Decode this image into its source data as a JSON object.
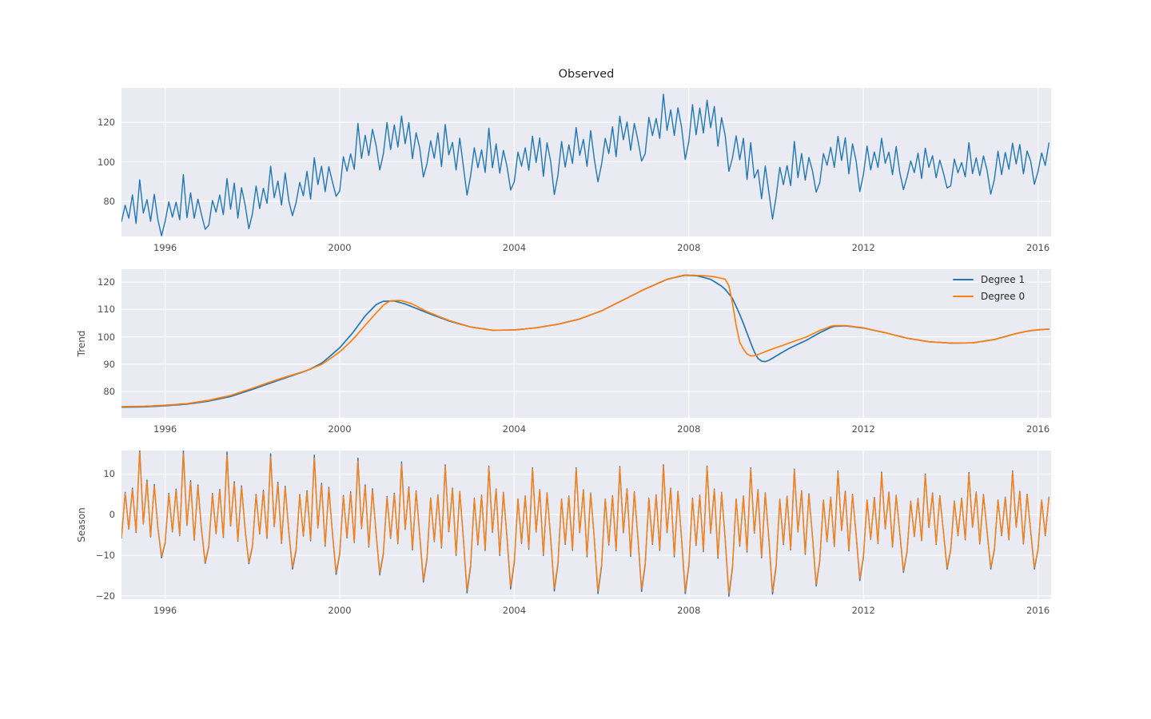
{
  "figure": {
    "title": "Observed",
    "background_color": "#ffffff",
    "axes_background_color": "#eaeaf2",
    "grid_color": "#ffffff",
    "tick_color": "#4d4d4d",
    "series_colors": {
      "degree1_blue": "#1f77b4",
      "degree0_orange": "#ff7f0e"
    }
  },
  "chart_data": [
    {
      "type": "line",
      "title": "Observed",
      "ylabel": "",
      "xlim": [
        1995.0,
        2016.3
      ],
      "ylim": [
        62.2,
        137.4
      ],
      "xticks": [
        1996,
        2000,
        2004,
        2008,
        2012,
        2016
      ],
      "xtick_labels": [
        "1996",
        "2000",
        "2004",
        "2008",
        "2012",
        "2016"
      ],
      "yticks": [
        80,
        100,
        120
      ],
      "ytick_labels": [
        "80",
        "100",
        "120"
      ],
      "grid": true,
      "legend": null,
      "series": [
        {
          "name": "Observed",
          "color": "#1f77b4",
          "source": "observed",
          "width": 1.4
        }
      ]
    },
    {
      "type": "line",
      "title": "",
      "ylabel": "Trend",
      "xlim": [
        1995.0,
        2016.3
      ],
      "ylim": [
        70.4,
        124.7
      ],
      "xticks": [
        1996,
        2000,
        2004,
        2008,
        2012,
        2016
      ],
      "xtick_labels": [
        "1996",
        "2000",
        "2004",
        "2008",
        "2012",
        "2016"
      ],
      "yticks": [
        80,
        90,
        100,
        110,
        120
      ],
      "ytick_labels": [
        "80",
        "90",
        "100",
        "110",
        "120"
      ],
      "grid": true,
      "legend": {
        "position": "upper right",
        "frame": false
      },
      "series": [
        {
          "name": "Degree 1",
          "color": "#1f77b4",
          "source": "trend1",
          "width": 1.7
        },
        {
          "name": "Degree 0",
          "color": "#ff7f0e",
          "source": "trend0",
          "width": 1.7
        }
      ]
    },
    {
      "type": "line",
      "title": "",
      "ylabel": "Season",
      "xlim": [
        1995.0,
        2016.3
      ],
      "ylim": [
        -20.8,
        15.8
      ],
      "xticks": [
        1996,
        2000,
        2004,
        2008,
        2012,
        2016
      ],
      "xtick_labels": [
        "1996",
        "2000",
        "2004",
        "2008",
        "2012",
        "2016"
      ],
      "yticks": [
        -20,
        -10,
        0,
        10
      ],
      "ytick_labels": [
        "−20",
        "−10",
        "0",
        "10"
      ],
      "grid": true,
      "legend": null,
      "series": [
        {
          "name": "Degree 1",
          "color": "#1f77b4",
          "source": "season1",
          "width": 1.4
        },
        {
          "name": "Degree 0",
          "color": "#ff7f0e",
          "source": "season0",
          "width": 1.4
        }
      ]
    }
  ],
  "model": {
    "months": {
      "start_year": 1995.0,
      "step_years": 0.0833333,
      "count": 256
    },
    "trend1_anchors": [
      [
        1995.0,
        74.3
      ],
      [
        1995.5,
        74.4
      ],
      [
        1996.0,
        74.8
      ],
      [
        1996.5,
        75.4
      ],
      [
        1997.0,
        76.5
      ],
      [
        1997.5,
        78.2
      ],
      [
        1998.0,
        80.8
      ],
      [
        1998.5,
        83.6
      ],
      [
        1999.0,
        86.3
      ],
      [
        1999.3,
        88.0
      ],
      [
        1999.6,
        90.5
      ],
      [
        2000.0,
        96.0
      ],
      [
        2000.3,
        101.5
      ],
      [
        2000.6,
        108.0
      ],
      [
        2000.85,
        112.0
      ],
      [
        2001.0,
        113.0
      ],
      [
        2001.25,
        113.1
      ],
      [
        2001.5,
        112.0
      ],
      [
        2002.0,
        108.8
      ],
      [
        2002.5,
        105.8
      ],
      [
        2003.0,
        103.6
      ],
      [
        2003.5,
        102.4
      ],
      [
        2004.0,
        102.5
      ],
      [
        2004.5,
        103.3
      ],
      [
        2005.0,
        104.6
      ],
      [
        2005.5,
        106.5
      ],
      [
        2006.0,
        109.5
      ],
      [
        2006.5,
        113.5
      ],
      [
        2007.0,
        117.5
      ],
      [
        2007.5,
        121.0
      ],
      [
        2007.9,
        122.5
      ],
      [
        2008.2,
        122.3
      ],
      [
        2008.5,
        121.0
      ],
      [
        2008.8,
        118.0
      ],
      [
        2009.0,
        114.0
      ],
      [
        2009.2,
        107.0
      ],
      [
        2009.4,
        98.5
      ],
      [
        2009.55,
        92.5
      ],
      [
        2009.7,
        90.7
      ],
      [
        2009.85,
        91.5
      ],
      [
        2010.0,
        93.0
      ],
      [
        2010.3,
        95.8
      ],
      [
        2010.7,
        98.8
      ],
      [
        2011.0,
        101.5
      ],
      [
        2011.3,
        103.8
      ],
      [
        2011.6,
        104.0
      ],
      [
        2012.0,
        103.2
      ],
      [
        2012.5,
        101.5
      ],
      [
        2013.0,
        99.5
      ],
      [
        2013.5,
        98.2
      ],
      [
        2014.0,
        97.7
      ],
      [
        2014.5,
        97.8
      ],
      [
        2015.0,
        99.0
      ],
      [
        2015.5,
        101.2
      ],
      [
        2015.8,
        102.2
      ],
      [
        2016.1,
        102.7
      ],
      [
        2016.3,
        102.8
      ]
    ],
    "trend0_anchors": [
      [
        1995.0,
        74.5
      ],
      [
        1995.5,
        74.6
      ],
      [
        1996.0,
        75.0
      ],
      [
        1996.5,
        75.6
      ],
      [
        1997.0,
        76.8
      ],
      [
        1997.5,
        78.6
      ],
      [
        1998.0,
        81.2
      ],
      [
        1998.5,
        84.0
      ],
      [
        1999.0,
        86.5
      ],
      [
        1999.3,
        88.0
      ],
      [
        1999.6,
        90.0
      ],
      [
        2000.0,
        94.5
      ],
      [
        2000.3,
        99.0
      ],
      [
        2000.6,
        104.5
      ],
      [
        2000.85,
        109.0
      ],
      [
        2001.0,
        111.5
      ],
      [
        2001.15,
        113.2
      ],
      [
        2001.4,
        113.3
      ],
      [
        2001.65,
        112.1
      ],
      [
        2002.0,
        109.2
      ],
      [
        2002.5,
        106.0
      ],
      [
        2003.0,
        103.6
      ],
      [
        2003.5,
        102.4
      ],
      [
        2004.0,
        102.5
      ],
      [
        2004.5,
        103.3
      ],
      [
        2005.0,
        104.6
      ],
      [
        2005.5,
        106.5
      ],
      [
        2006.0,
        109.5
      ],
      [
        2006.5,
        113.5
      ],
      [
        2007.0,
        117.5
      ],
      [
        2007.5,
        121.0
      ],
      [
        2007.9,
        122.6
      ],
      [
        2008.3,
        122.4
      ],
      [
        2008.6,
        121.9
      ],
      [
        2008.85,
        121.0
      ],
      [
        2008.95,
        117.5
      ],
      [
        2009.05,
        107.0
      ],
      [
        2009.15,
        98.5
      ],
      [
        2009.3,
        94.0
      ],
      [
        2009.45,
        92.8
      ],
      [
        2009.6,
        93.6
      ],
      [
        2009.85,
        95.2
      ],
      [
        2010.1,
        96.6
      ],
      [
        2010.4,
        98.3
      ],
      [
        2010.7,
        100.0
      ],
      [
        2011.0,
        102.3
      ],
      [
        2011.3,
        104.1
      ],
      [
        2011.6,
        104.1
      ],
      [
        2012.0,
        103.3
      ],
      [
        2012.5,
        101.5
      ],
      [
        2013.0,
        99.5
      ],
      [
        2013.5,
        98.2
      ],
      [
        2014.0,
        97.7
      ],
      [
        2014.5,
        97.8
      ],
      [
        2015.0,
        99.0
      ],
      [
        2015.5,
        101.2
      ],
      [
        2015.8,
        102.2
      ],
      [
        2016.1,
        102.7
      ],
      [
        2016.3,
        102.8
      ]
    ],
    "season": {
      "base12": [
        -8.5,
        5.0,
        -5.0,
        6.0,
        -6.0,
        15.0,
        -3.0,
        8.0,
        -7.0,
        7.0,
        -4.0,
        -13.0
      ],
      "scale_years_start": 1995,
      "deg1_pos": [
        1.1,
        1.05,
        1.05,
        1.0,
        1.0,
        0.95,
        0.9,
        0.82,
        0.82,
        0.77,
        0.77,
        0.77,
        0.82,
        0.82,
        0.77,
        0.77,
        0.72,
        0.72,
        0.67,
        0.67,
        0.72,
        0.72
      ],
      "deg1_neg": [
        0.68,
        0.83,
        0.93,
        0.93,
        1.04,
        1.14,
        1.14,
        1.29,
        1.5,
        1.4,
        1.45,
        1.5,
        1.45,
        1.5,
        1.55,
        1.5,
        1.34,
        1.24,
        1.08,
        1.03,
        1.03,
        1.03
      ],
      "deg0_pos": [
        1.05,
        1.0,
        1.0,
        0.95,
        0.95,
        0.9,
        0.85,
        0.8,
        0.8,
        0.75,
        0.75,
        0.75,
        0.8,
        0.8,
        0.75,
        0.75,
        0.7,
        0.7,
        0.65,
        0.65,
        0.7,
        0.7
      ],
      "deg0_neg": [
        0.65,
        0.8,
        0.9,
        0.9,
        1.0,
        1.1,
        1.1,
        1.25,
        1.45,
        1.35,
        1.4,
        1.45,
        1.4,
        1.45,
        1.5,
        1.45,
        1.3,
        1.2,
        1.05,
        1.0,
        1.0,
        1.0
      ]
    },
    "residual_pattern": [
      1.2,
      -1.8,
      0.6,
      2.4,
      -1.1,
      0.3,
      1.9,
      -2.2,
      0.8,
      1.5,
      -0.7,
      -1.6,
      2.1,
      -0.4
    ]
  }
}
